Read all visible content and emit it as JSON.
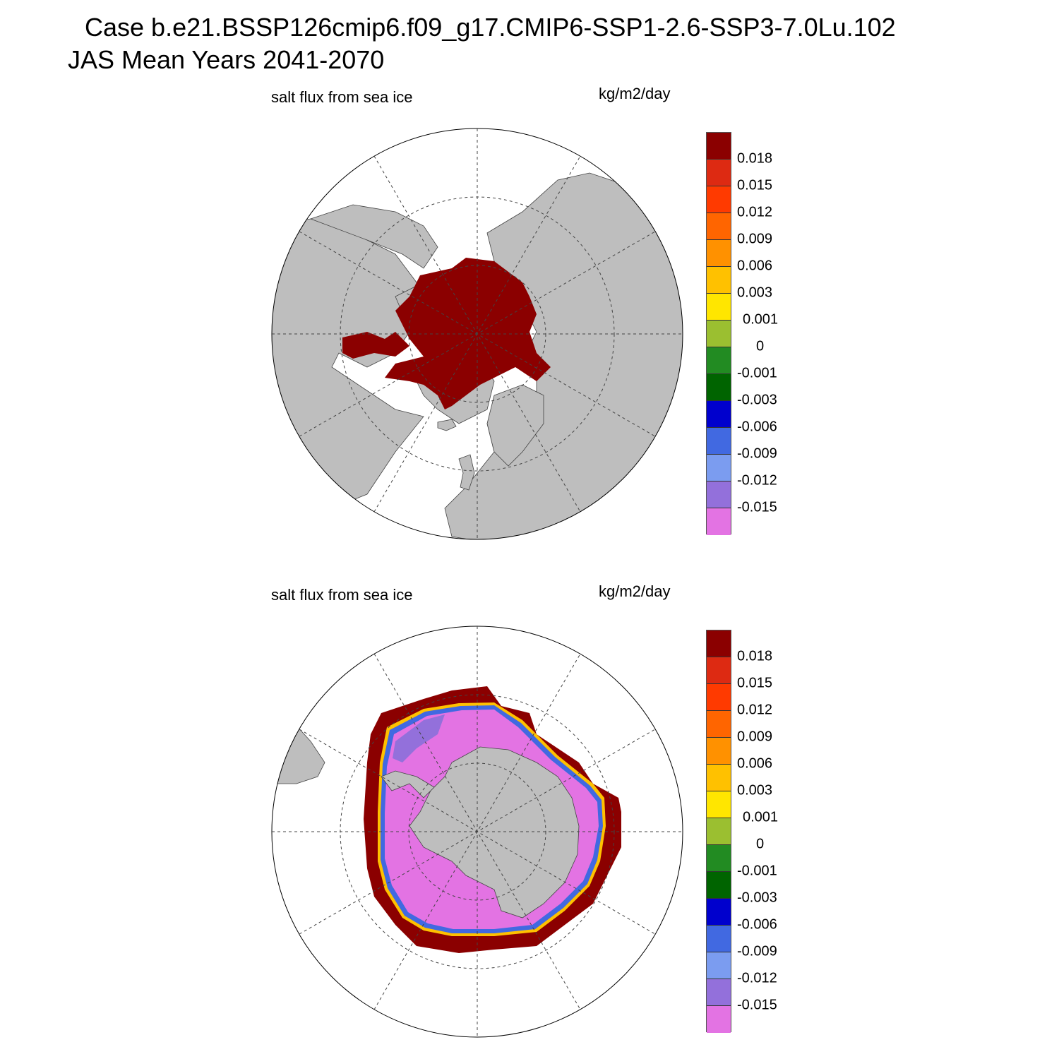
{
  "figure": {
    "case_title": "Case b.e21.BSSP126cmip6.f09_g17.CMIP6-SSP1-2.6-SSP3-7.0Lu.102",
    "mean_title": "JAS Mean   Years 2041-2070"
  },
  "panels": [
    {
      "hemisphere": "north",
      "title": "salt flux from sea ice",
      "units": "kg/m2/day"
    },
    {
      "hemisphere": "south",
      "title": "salt flux from sea ice",
      "units": "kg/m2/day"
    }
  ],
  "colorbar": {
    "labels": [
      "0.018",
      "0.015",
      "0.012",
      "0.009",
      "0.006",
      "0.003",
      "0.001",
      "0",
      "-0.001",
      "-0.003",
      "-0.006",
      "-0.009",
      "-0.012",
      "-0.015"
    ],
    "colors": [
      "#8b0000",
      "#dd2a12",
      "#ff3a00",
      "#ff6500",
      "#ff9100",
      "#ffc100",
      "#ffe600",
      "#9bbf30",
      "#228b22",
      "#006400",
      "#0000cd",
      "#4169e1",
      "#7b9cf0",
      "#9370db",
      "#e373e3"
    ]
  },
  "colors": {
    "land": "#bebebe",
    "ocean": "#ffffff",
    "ice_positive": "#8b0000",
    "ice_negative": "#e373e3"
  }
}
